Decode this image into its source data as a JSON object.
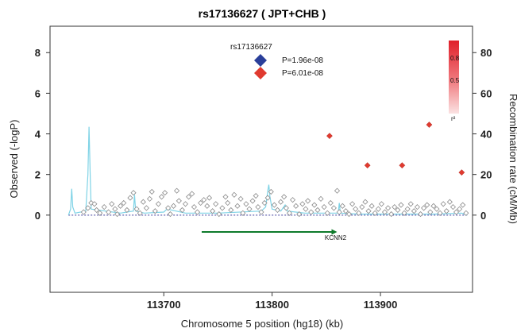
{
  "chart_data": {
    "type": "scatter",
    "title": "rs17136627 ( JPT+CHB )",
    "xlabel": "Chromosome 5 position (hg18) (kb)",
    "ylabel": "Observed (-logP)",
    "y2label": "Recombination rate (cM/Mb)",
    "xlim": [
      113595,
      113985
    ],
    "ylim": [
      -3.8,
      9.3
    ],
    "y2lim": [
      -38,
      93
    ],
    "x_ticks": [
      113700,
      113800,
      113900
    ],
    "x_tick_labels": [
      "113700",
      "113800",
      "113900"
    ],
    "y_ticks": [
      0,
      2,
      4,
      6,
      8
    ],
    "y_tick_labels": [
      "0",
      "2",
      "4",
      "6",
      "8"
    ],
    "y2_ticks": [
      0,
      20,
      40,
      60,
      80
    ],
    "y2_tick_labels": [
      "0",
      "20",
      "40",
      "60",
      "80"
    ],
    "legend": {
      "title": "rs17136627",
      "entries": [
        {
          "label": "P=1.96e-08",
          "color": "#2a3f9a",
          "marker": "diamond"
        },
        {
          "label": "P=6.01e-08",
          "color": "#e03a2f",
          "marker": "diamond"
        }
      ]
    },
    "r2_colorbar": {
      "label": "r²",
      "tick_labels": [
        "0.8",
        "0.5"
      ],
      "high_color": "#e0202a",
      "low_color": "#fbe3e3"
    },
    "gene": {
      "name": "KCNN2",
      "start": 113735,
      "end": 113860,
      "color": "#0e7a2b"
    },
    "baseline_color": "#3a3a9a",
    "recombination_color": "#7fd3e6",
    "significant_snps": {
      "color": "#e03a2f",
      "points": [
        {
          "x": 113853,
          "y": 3.9
        },
        {
          "x": 113888,
          "y": 2.45
        },
        {
          "x": 113920,
          "y": 2.45
        },
        {
          "x": 113945,
          "y": 4.45
        },
        {
          "x": 113975,
          "y": 2.1
        }
      ]
    },
    "other_snps": {
      "color": "#8a8a8a",
      "points": [
        {
          "x": 113626,
          "y": 0.15
        },
        {
          "x": 113630,
          "y": 0.35
        },
        {
          "x": 113633,
          "y": 0.6
        },
        {
          "x": 113636,
          "y": 0.55
        },
        {
          "x": 113638,
          "y": 0.25
        },
        {
          "x": 113641,
          "y": 0.1
        },
        {
          "x": 113645,
          "y": 0.4
        },
        {
          "x": 113649,
          "y": 0.15
        },
        {
          "x": 113652,
          "y": 0.55
        },
        {
          "x": 113655,
          "y": 0.3
        },
        {
          "x": 113657,
          "y": 0.05
        },
        {
          "x": 113660,
          "y": 0.45
        },
        {
          "x": 113663,
          "y": 0.6
        },
        {
          "x": 113666,
          "y": 0.25
        },
        {
          "x": 113669,
          "y": 0.85
        },
        {
          "x": 113672,
          "y": 1.1
        },
        {
          "x": 113675,
          "y": 0.3
        },
        {
          "x": 113678,
          "y": 0.1
        },
        {
          "x": 113681,
          "y": 0.65
        },
        {
          "x": 113684,
          "y": 0.35
        },
        {
          "x": 113687,
          "y": 0.8
        },
        {
          "x": 113689,
          "y": 1.15
        },
        {
          "x": 113692,
          "y": 0.2
        },
        {
          "x": 113695,
          "y": 0.55
        },
        {
          "x": 113698,
          "y": 0.9
        },
        {
          "x": 113701,
          "y": 1.1
        },
        {
          "x": 113704,
          "y": 0.35
        },
        {
          "x": 113706,
          "y": 0.05
        },
        {
          "x": 113709,
          "y": 0.45
        },
        {
          "x": 113712,
          "y": 1.2
        },
        {
          "x": 113714,
          "y": 0.7
        },
        {
          "x": 113717,
          "y": 0.25
        },
        {
          "x": 113720,
          "y": 0.55
        },
        {
          "x": 113723,
          "y": 0.9
        },
        {
          "x": 113726,
          "y": 1.05
        },
        {
          "x": 113728,
          "y": 0.4
        },
        {
          "x": 113731,
          "y": 0.15
        },
        {
          "x": 113734,
          "y": 0.6
        },
        {
          "x": 113737,
          "y": 0.75
        },
        {
          "x": 113740,
          "y": 0.45
        },
        {
          "x": 113742,
          "y": 0.85
        },
        {
          "x": 113745,
          "y": 0.2
        },
        {
          "x": 113748,
          "y": 0.55
        },
        {
          "x": 113751,
          "y": 0.05
        },
        {
          "x": 113754,
          "y": 0.35
        },
        {
          "x": 113757,
          "y": 0.9
        },
        {
          "x": 113759,
          "y": 0.6
        },
        {
          "x": 113762,
          "y": 0.25
        },
        {
          "x": 113765,
          "y": 1.0
        },
        {
          "x": 113768,
          "y": 0.45
        },
        {
          "x": 113771,
          "y": 0.8
        },
        {
          "x": 113773,
          "y": 0.1
        },
        {
          "x": 113776,
          "y": 0.55
        },
        {
          "x": 113779,
          "y": 0.3
        },
        {
          "x": 113782,
          "y": 0.7
        },
        {
          "x": 113785,
          "y": 0.95
        },
        {
          "x": 113787,
          "y": 0.4
        },
        {
          "x": 113790,
          "y": 0.15
        },
        {
          "x": 113793,
          "y": 0.6
        },
        {
          "x": 113796,
          "y": 0.85
        },
        {
          "x": 113799,
          "y": 1.15
        },
        {
          "x": 113802,
          "y": 0.5
        },
        {
          "x": 113805,
          "y": 0.25
        },
        {
          "x": 113808,
          "y": 0.65
        },
        {
          "x": 113811,
          "y": 0.9
        },
        {
          "x": 113813,
          "y": 0.35
        },
        {
          "x": 113816,
          "y": 0.1
        },
        {
          "x": 113819,
          "y": 0.75
        },
        {
          "x": 113822,
          "y": 0.45
        },
        {
          "x": 113825,
          "y": 0.05
        },
        {
          "x": 113828,
          "y": 0.55
        },
        {
          "x": 113831,
          "y": 0.3
        },
        {
          "x": 113833,
          "y": 0.7
        },
        {
          "x": 113836,
          "y": 0.15
        },
        {
          "x": 113839,
          "y": 0.5
        },
        {
          "x": 113842,
          "y": 0.25
        },
        {
          "x": 113845,
          "y": 0.8
        },
        {
          "x": 113848,
          "y": 0.4
        },
        {
          "x": 113851,
          "y": 0.1
        },
        {
          "x": 113854,
          "y": 0.6
        },
        {
          "x": 113857,
          "y": 0.35
        },
        {
          "x": 113860,
          "y": 1.2
        },
        {
          "x": 113862,
          "y": 0.15
        },
        {
          "x": 113865,
          "y": 0.45
        },
        {
          "x": 113868,
          "y": 0.2
        },
        {
          "x": 113871,
          "y": 0.05
        },
        {
          "x": 113874,
          "y": 0.55
        },
        {
          "x": 113877,
          "y": 0.3
        },
        {
          "x": 113880,
          "y": 0.1
        },
        {
          "x": 113883,
          "y": 0.4
        },
        {
          "x": 113886,
          "y": 0.65
        },
        {
          "x": 113889,
          "y": 0.2
        },
        {
          "x": 113892,
          "y": 0.45
        },
        {
          "x": 113895,
          "y": 0.1
        },
        {
          "x": 113898,
          "y": 0.3
        },
        {
          "x": 113901,
          "y": 0.55
        },
        {
          "x": 113904,
          "y": 0.15
        },
        {
          "x": 113907,
          "y": 0.35
        },
        {
          "x": 113910,
          "y": 0.05
        },
        {
          "x": 113913,
          "y": 0.4
        },
        {
          "x": 113916,
          "y": 0.25
        },
        {
          "x": 113919,
          "y": 0.5
        },
        {
          "x": 113922,
          "y": 0.1
        },
        {
          "x": 113925,
          "y": 0.3
        },
        {
          "x": 113928,
          "y": 0.55
        },
        {
          "x": 113931,
          "y": 0.2
        },
        {
          "x": 113934,
          "y": 0.4
        },
        {
          "x": 113937,
          "y": 0.05
        },
        {
          "x": 113940,
          "y": 0.35
        },
        {
          "x": 113943,
          "y": 0.5
        },
        {
          "x": 113946,
          "y": 0.15
        },
        {
          "x": 113949,
          "y": 0.45
        },
        {
          "x": 113952,
          "y": 0.3
        },
        {
          "x": 113955,
          "y": 0.1
        },
        {
          "x": 113958,
          "y": 0.55
        },
        {
          "x": 113961,
          "y": 0.2
        },
        {
          "x": 113964,
          "y": 0.65
        },
        {
          "x": 113967,
          "y": 0.4
        },
        {
          "x": 113970,
          "y": 0.15
        },
        {
          "x": 113973,
          "y": 0.3
        },
        {
          "x": 113976,
          "y": 0.5
        },
        {
          "x": 113979,
          "y": 0.1
        }
      ]
    },
    "recombination_profile": [
      {
        "x": 113612,
        "y": 0
      },
      {
        "x": 113614,
        "y": 0.3
      },
      {
        "x": 113615,
        "y": 1.3
      },
      {
        "x": 113616,
        "y": 0.4
      },
      {
        "x": 113618,
        "y": 0.1
      },
      {
        "x": 113628,
        "y": 0.2
      },
      {
        "x": 113630,
        "y": 2.0
      },
      {
        "x": 113631,
        "y": 4.35
      },
      {
        "x": 113632,
        "y": 2.1
      },
      {
        "x": 113633,
        "y": 0.3
      },
      {
        "x": 113660,
        "y": 0.1
      },
      {
        "x": 113672,
        "y": 0.2
      },
      {
        "x": 113673,
        "y": 1.0
      },
      {
        "x": 113674,
        "y": 0.2
      },
      {
        "x": 113682,
        "y": 0.1
      },
      {
        "x": 113700,
        "y": 0.15
      },
      {
        "x": 113703,
        "y": 0.3
      },
      {
        "x": 113720,
        "y": 0.1
      },
      {
        "x": 113750,
        "y": 0.1
      },
      {
        "x": 113790,
        "y": 0.2
      },
      {
        "x": 113794,
        "y": 0.4
      },
      {
        "x": 113796,
        "y": 1.2
      },
      {
        "x": 113797,
        "y": 1.5
      },
      {
        "x": 113798,
        "y": 0.9
      },
      {
        "x": 113800,
        "y": 0.3
      },
      {
        "x": 113808,
        "y": 0.2
      },
      {
        "x": 113812,
        "y": 0.5
      },
      {
        "x": 113814,
        "y": 0.2
      },
      {
        "x": 113830,
        "y": 0.1
      },
      {
        "x": 113861,
        "y": 0.1
      },
      {
        "x": 113862,
        "y": 0.6
      },
      {
        "x": 113863,
        "y": 0.1
      },
      {
        "x": 113880,
        "y": 0.05
      },
      {
        "x": 113920,
        "y": 0.05
      },
      {
        "x": 113950,
        "y": 0.05
      },
      {
        "x": 113975,
        "y": 0.1
      },
      {
        "x": 113980,
        "y": 0
      }
    ]
  }
}
